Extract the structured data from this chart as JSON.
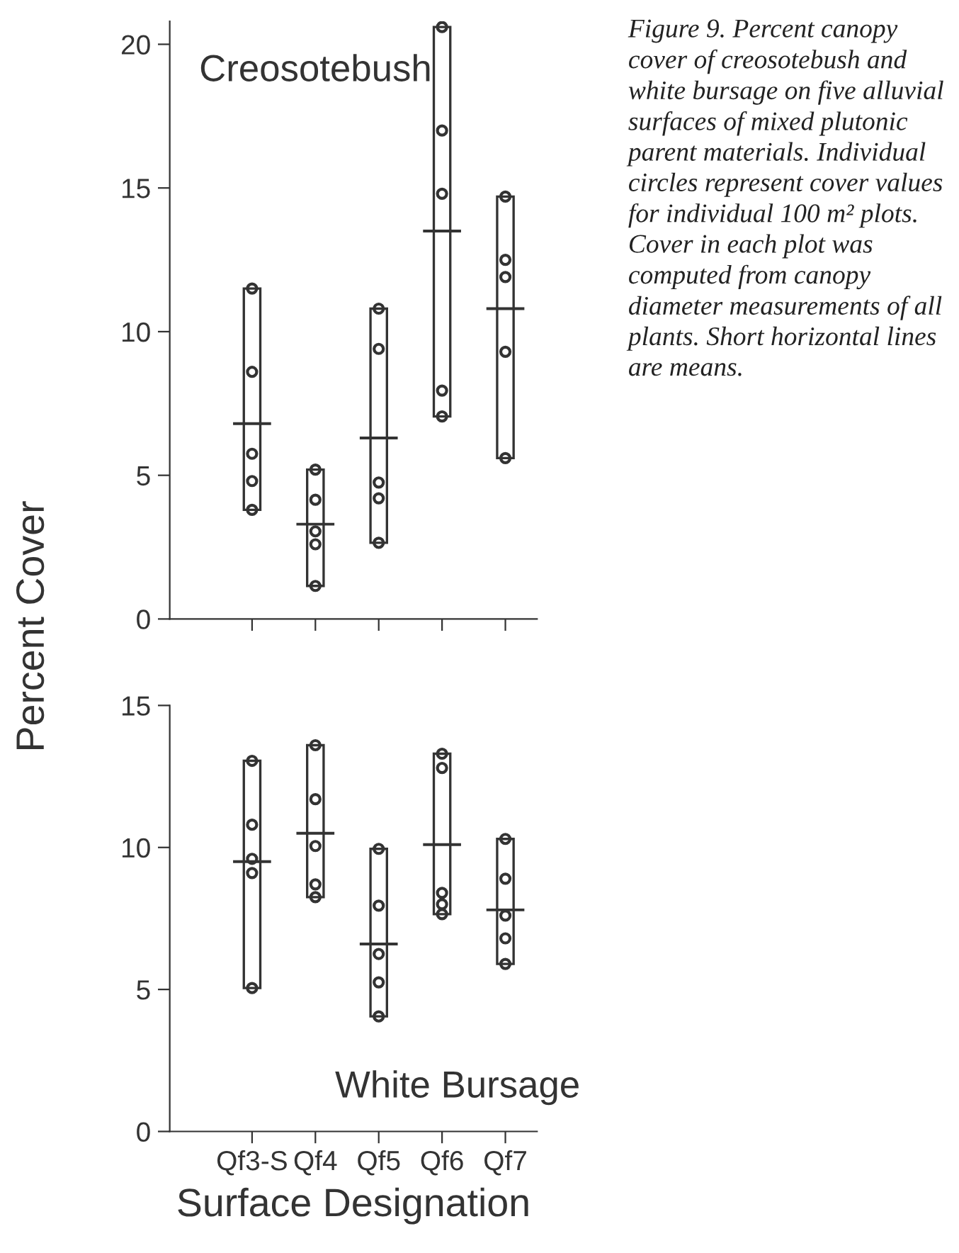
{
  "chart_data": [
    {
      "type": "bar",
      "categories": [
        "Qf3-S",
        "Qf4",
        "Qf5",
        "Qf6",
        "Qf7"
      ],
      "ylabel": "Percent Cover",
      "ylim": [
        0,
        20.8
      ],
      "yticks": [
        0,
        5,
        10,
        15,
        20
      ],
      "tick_labels": "y",
      "grid": false,
      "legend": false,
      "annotations": [
        "Creosotebush",
        "Figure 9. Percent canopy cover of creosotebush and white bursage on five alluvial surfaces of mixed plutonic parent materials. Individual circles represent cover values for individual 100 m² plots. Cover in each plot was computed from canopy diameter measurements of all plants. Short horizontal lines are means."
      ],
      "series": [
        {
          "color": "#ffffff",
          "base": [
            3.8,
            1.15,
            2.65,
            7.05,
            5.6
          ],
          "values": [
            7.7,
            4.05,
            8.15,
            13.55,
            9.1
          ]
        },
        {
          "type": "scatter",
          "marker": "circle",
          "color": "#333333",
          "x": [
            "Qf3-S",
            "Qf3-S",
            "Qf3-S",
            "Qf3-S",
            "Qf3-S",
            "Qf4",
            "Qf4",
            "Qf4",
            "Qf4",
            "Qf4",
            "Qf5",
            "Qf5",
            "Qf5",
            "Qf5",
            "Qf5",
            "Qf6",
            "Qf6",
            "Qf6",
            "Qf6",
            "Qf6",
            "Qf7",
            "Qf7",
            "Qf7",
            "Qf7",
            "Qf7"
          ],
          "values": [
            11.5,
            8.6,
            5.75,
            4.8,
            3.8,
            5.2,
            4.15,
            3.05,
            2.6,
            1.15,
            10.8,
            9.4,
            4.75,
            4.2,
            2.65,
            20.6,
            17.0,
            14.8,
            7.95,
            7.05,
            14.7,
            12.5,
            11.9,
            9.3,
            5.6
          ]
        },
        {
          "type": "bar",
          "color": "#333333",
          "base": [
            6.8,
            3.3,
            6.3,
            13.5,
            10.8
          ],
          "values": [
            0,
            0,
            0,
            0,
            0
          ]
        }
      ]
    },
    {
      "type": "bar",
      "categories": [
        "Qf3-S",
        "Qf4",
        "Qf5",
        "Qf6",
        "Qf7"
      ],
      "xlabel": "Surface Designation",
      "ylim": [
        0,
        15
      ],
      "yticks": [
        0,
        5,
        10,
        15
      ],
      "grid": false,
      "legend": false,
      "annotations": [
        "White Bursage"
      ],
      "series": [
        {
          "color": "#ffffff",
          "base": [
            5.05,
            8.25,
            4.05,
            7.65,
            5.9
          ],
          "values": [
            8.0,
            5.35,
            5.9,
            5.65,
            4.4
          ]
        },
        {
          "type": "scatter",
          "marker": "circle",
          "color": "#333333",
          "x": [
            "Qf3-S",
            "Qf3-S",
            "Qf3-S",
            "Qf3-S",
            "Qf3-S",
            "Qf4",
            "Qf4",
            "Qf4",
            "Qf4",
            "Qf4",
            "Qf5",
            "Qf5",
            "Qf5",
            "Qf5",
            "Qf5",
            "Qf6",
            "Qf6",
            "Qf6",
            "Qf6",
            "Qf6",
            "Qf7",
            "Qf7",
            "Qf7",
            "Qf7",
            "Qf7"
          ],
          "values": [
            13.05,
            10.8,
            9.6,
            9.1,
            5.05,
            13.6,
            11.7,
            10.05,
            8.7,
            8.25,
            9.95,
            7.95,
            6.25,
            5.25,
            4.05,
            13.3,
            12.8,
            8.4,
            8.0,
            7.65,
            10.3,
            8.9,
            7.6,
            6.8,
            5.9
          ]
        },
        {
          "type": "bar",
          "color": "#333333",
          "base": [
            9.5,
            10.5,
            6.6,
            10.1,
            7.8
          ],
          "values": [
            0,
            0,
            0,
            0,
            0
          ]
        }
      ]
    }
  ]
}
